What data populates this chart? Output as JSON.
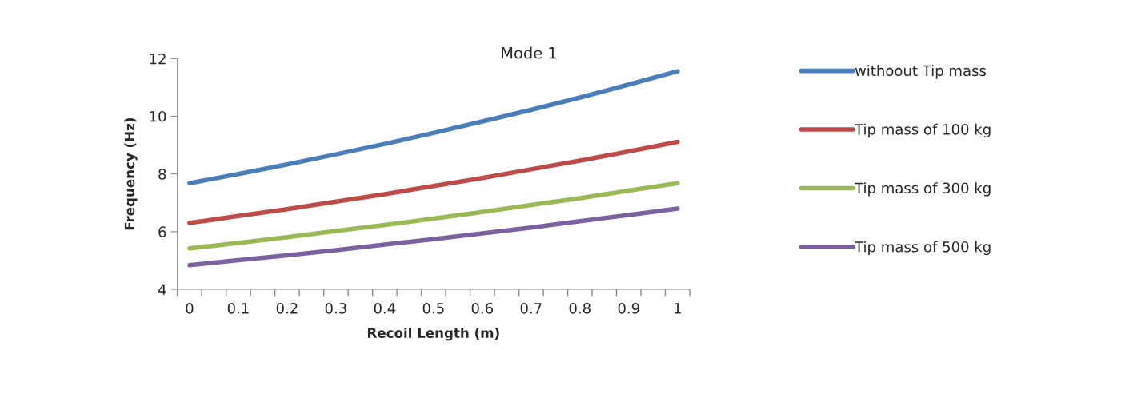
{
  "chart_data": {
    "type": "line",
    "title": "Mode 1",
    "xlabel": "Recoil Length (m)",
    "ylabel": "Frequency (Hz)",
    "x": [
      0,
      0.1,
      0.2,
      0.3,
      0.4,
      0.5,
      0.6,
      0.7,
      0.8,
      0.9,
      1
    ],
    "series": [
      {
        "name": "withoout Tip mass",
        "color": "#4a7ebb",
        "values": [
          7.68,
          8.0,
          8.33,
          8.68,
          9.04,
          9.42,
          9.82,
          10.22,
          10.65,
          11.1,
          11.56
        ]
      },
      {
        "name": "Tip mass of 100 kg",
        "color": "#be4b48",
        "values": [
          6.3,
          6.54,
          6.78,
          7.04,
          7.3,
          7.58,
          7.86,
          8.16,
          8.46,
          8.78,
          9.11
        ]
      },
      {
        "name": "Tip mass of 300 kg",
        "color": "#98b954",
        "values": [
          5.42,
          5.61,
          5.81,
          6.02,
          6.23,
          6.45,
          6.68,
          6.92,
          7.16,
          7.42,
          7.68
        ]
      },
      {
        "name": "Tip mass of 500 kg",
        "color": "#7d60a0",
        "values": [
          4.84,
          5.01,
          5.18,
          5.36,
          5.55,
          5.74,
          5.94,
          6.14,
          6.36,
          6.58,
          6.8
        ]
      }
    ],
    "xlim": [
      -0.025,
      1.025
    ],
    "xticks": [
      0,
      0.1,
      0.2,
      0.3,
      0.4,
      0.5,
      0.6,
      0.7,
      0.8,
      0.9,
      1,
      {
        "value": -0.025,
        "label": null
      },
      {
        "value": 0.025,
        "label": null
      },
      {
        "value": 0.075,
        "label": null
      },
      {
        "value": 0.125,
        "label": null
      },
      {
        "value": 0.175,
        "label": null
      },
      {
        "value": 0.225,
        "label": null
      },
      {
        "value": 0.275,
        "label": null
      },
      {
        "value": 0.325,
        "label": null
      },
      {
        "value": 0.375,
        "label": null
      },
      {
        "value": 0.425,
        "label": null
      },
      {
        "value": 0.475,
        "label": null
      },
      {
        "value": 0.525,
        "label": null
      },
      {
        "value": 0.575,
        "label": null
      },
      {
        "value": 0.625,
        "label": null
      },
      {
        "value": 0.675,
        "label": null
      },
      {
        "value": 0.725,
        "label": null
      },
      {
        "value": 0.775,
        "label": null
      },
      {
        "value": 0.825,
        "label": null
      },
      {
        "value": 0.875,
        "label": null
      },
      {
        "value": 0.925,
        "label": null
      },
      {
        "value": 0.975,
        "label": null
      },
      {
        "value": 1.025,
        "label": null
      }
    ],
    "ylim": [
      4,
      12
    ],
    "yticks": [
      4,
      6,
      8,
      10,
      12
    ],
    "grid": false,
    "legend": "right",
    "marker": "none",
    "line_style": "solid"
  }
}
